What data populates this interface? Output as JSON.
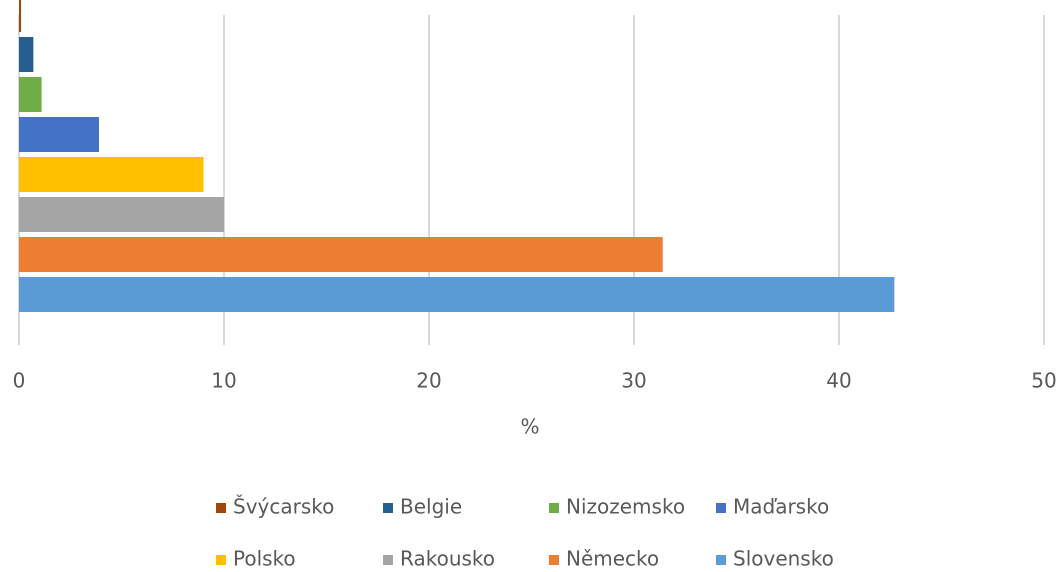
{
  "chart_data": {
    "type": "bar",
    "orientation": "horizontal",
    "categories": [
      "Švýcarsko",
      "Belgie",
      "Nizozemsko",
      "Maďarsko",
      "Polsko",
      "Rakousko",
      "Německo",
      "Slovensko"
    ],
    "values": [
      0.1,
      0.7,
      1.1,
      3.9,
      9,
      10,
      31.4,
      42.7
    ],
    "colors": [
      "#9e480e",
      "#255e91",
      "#70ad47",
      "#4472c4",
      "#ffc000",
      "#a5a5a5",
      "#ed7d31",
      "#5b9bd5"
    ],
    "xlim": [
      0,
      50
    ],
    "xticks": [
      0,
      10,
      20,
      30,
      40,
      50
    ],
    "xlabel": "%",
    "grid": true,
    "legend": "bottom"
  }
}
